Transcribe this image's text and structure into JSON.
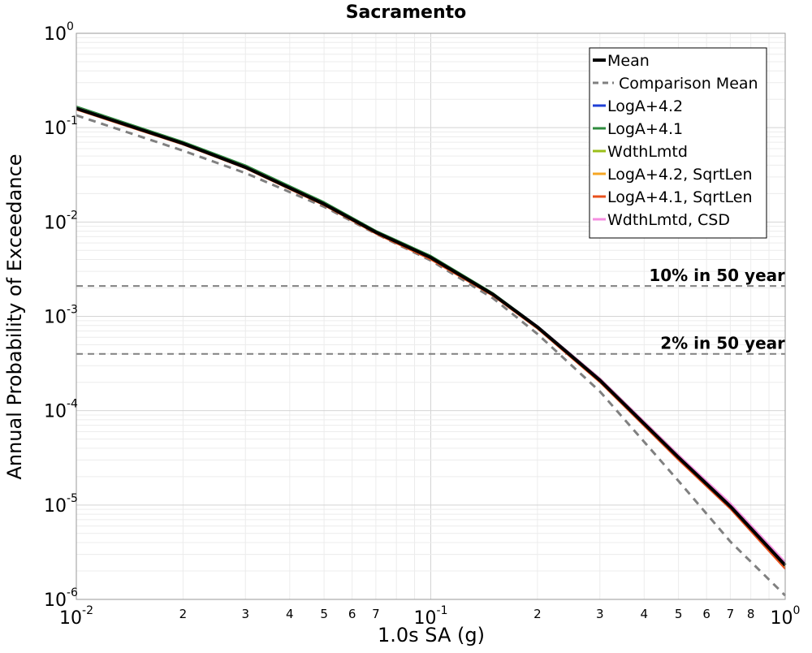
{
  "chart_data": {
    "type": "line",
    "title": "Sacramento",
    "xlabel": "1.0s SA (g)",
    "ylabel": "Annual Probability of Exceedance",
    "x_scale": "log",
    "y_scale": "log",
    "xlim": [
      0.01,
      1.0
    ],
    "ylim": [
      1e-06,
      1.0
    ],
    "grid": true,
    "legend_position": "top-right",
    "x_major_ticks": [
      {
        "base": "10",
        "exp": "-2",
        "value": 0.01
      },
      {
        "base": "10",
        "exp": "-1",
        "value": 0.1
      },
      {
        "base": "10",
        "exp": "0",
        "value": 1.0
      }
    ],
    "x_minor_ticks": [
      {
        "label": "2",
        "value": 0.02
      },
      {
        "label": "3",
        "value": 0.03
      },
      {
        "label": "4",
        "value": 0.04
      },
      {
        "label": "5",
        "value": 0.05
      },
      {
        "label": "6",
        "value": 0.06
      },
      {
        "label": "7",
        "value": 0.07
      },
      {
        "label": "2",
        "value": 0.2
      },
      {
        "label": "3",
        "value": 0.3
      },
      {
        "label": "4",
        "value": 0.4
      },
      {
        "label": "5",
        "value": 0.5
      },
      {
        "label": "6",
        "value": 0.6
      },
      {
        "label": "7",
        "value": 0.7
      },
      {
        "label": "8",
        "value": 0.8
      }
    ],
    "y_major_ticks": [
      {
        "base": "10",
        "exp": "0",
        "value": 1.0
      },
      {
        "base": "10",
        "exp": "-1",
        "value": 0.1
      },
      {
        "base": "10",
        "exp": "-2",
        "value": 0.01
      },
      {
        "base": "10",
        "exp": "-3",
        "value": 0.001
      },
      {
        "base": "10",
        "exp": "-4",
        "value": 0.0001
      },
      {
        "base": "10",
        "exp": "-5",
        "value": 1e-05
      },
      {
        "base": "10",
        "exp": "-6",
        "value": 1e-06
      }
    ],
    "reference_lines": [
      {
        "label": "10% in 50 year",
        "y": 0.0021,
        "color": "#808080",
        "dash": "8,6"
      },
      {
        "label": "2% in 50 year",
        "y": 0.0004,
        "color": "#808080",
        "dash": "8,6"
      }
    ],
    "x": [
      0.01,
      0.02,
      0.03,
      0.05,
      0.07,
      0.1,
      0.15,
      0.2,
      0.3,
      0.5,
      0.7,
      1.0
    ],
    "series": [
      {
        "name": "Mean",
        "color": "#000000",
        "width": 4,
        "dash": "",
        "values": [
          0.16,
          0.068,
          0.038,
          0.0155,
          0.0078,
          0.0042,
          0.0017,
          0.00077,
          0.00021,
          3.2e-05,
          9.7e-06,
          2.3e-06
        ]
      },
      {
        "name": "Comparison Mean",
        "color": "#808080",
        "width": 3,
        "dash": "9,7",
        "values": [
          0.135,
          0.057,
          0.033,
          0.0145,
          0.0075,
          0.0039,
          0.00155,
          0.00065,
          0.00016,
          1.8e-05,
          4.1e-06,
          1.1e-06
        ]
      },
      {
        "name": "LogA+4.2",
        "color": "#1f3fd6",
        "width": 2,
        "dash": "",
        "values": [
          0.165,
          0.07,
          0.039,
          0.016,
          0.008,
          0.0043,
          0.00175,
          0.00079,
          0.00022,
          3.4e-05,
          1.02e-05,
          2.4e-06
        ]
      },
      {
        "name": "LogA+4.1",
        "color": "#2e8b3e",
        "width": 2,
        "dash": "",
        "values": [
          0.168,
          0.071,
          0.04,
          0.0163,
          0.0081,
          0.0044,
          0.00176,
          0.00079,
          0.00022,
          3.3e-05,
          9.8e-06,
          2.2e-06
        ]
      },
      {
        "name": "WdthLmtd",
        "color": "#9bbf1a",
        "width": 2,
        "dash": "",
        "values": [
          0.162,
          0.069,
          0.0385,
          0.0157,
          0.0079,
          0.0042,
          0.00172,
          0.00078,
          0.000215,
          3.3e-05,
          9.9e-06,
          2.3e-06
        ]
      },
      {
        "name": "LogA+4.2, SqrtLen",
        "color": "#f5a623",
        "width": 2,
        "dash": "",
        "values": [
          0.158,
          0.067,
          0.0375,
          0.0153,
          0.0077,
          0.0041,
          0.0017,
          0.00078,
          0.00022,
          3.4e-05,
          1e-05,
          2.2e-06
        ]
      },
      {
        "name": "LogA+4.1, SqrtLen",
        "color": "#e8501c",
        "width": 2,
        "dash": "",
        "values": [
          0.155,
          0.066,
          0.037,
          0.015,
          0.0075,
          0.004,
          0.00164,
          0.00074,
          0.0002,
          3e-05,
          9.1e-06,
          2.1e-06
        ]
      },
      {
        "name": "WdthLmtd, CSD",
        "color": "#f48ee0",
        "width": 2,
        "dash": "",
        "values": [
          0.163,
          0.069,
          0.0387,
          0.0158,
          0.0079,
          0.0042,
          0.00173,
          0.00079,
          0.00022,
          3.4e-05,
          1.05e-05,
          2.5e-06
        ]
      }
    ]
  }
}
